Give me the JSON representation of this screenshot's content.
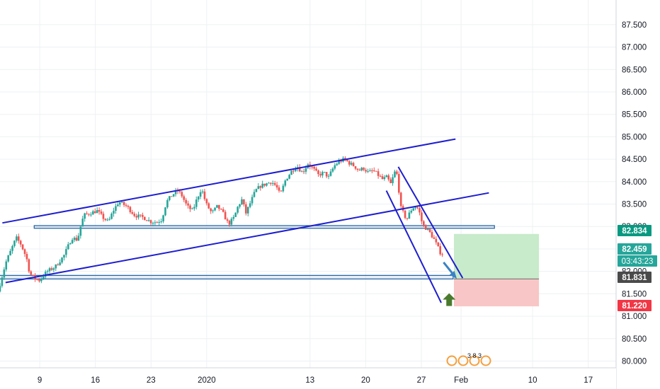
{
  "colors": {
    "up": "#26a69a",
    "down": "#ef5350",
    "trend": "#1e1ecf",
    "zone": "#1f5f9e",
    "profit_fill": "#c8ebcb",
    "loss_fill": "#f8c6c6",
    "grid": "#eef0f3",
    "arrow_down": "#3b82c4",
    "arrow_up": "#4a7a2e",
    "tag_target": "#089981",
    "tag_price": "#26a69a",
    "tag_entry": "#4a4a4a",
    "tag_stop": "#f23645"
  },
  "price_labels": {
    "target": "82.834",
    "price": "82.459",
    "countdown": "03:43:23",
    "entry": "81.831",
    "stop": "81.220"
  },
  "indicator_text": "3 8 3",
  "chart_data": {
    "type": "candlestick",
    "title": "",
    "y_range": [
      79.85,
      88.05
    ],
    "y_ticks": [
      "80.000",
      "80.500",
      "81.000",
      "81.500",
      "82.000",
      "82.500",
      "83.000",
      "83.500",
      "84.000",
      "84.500",
      "85.000",
      "85.500",
      "86.000",
      "86.500",
      "87.000",
      "87.500"
    ],
    "x_ticks": [
      {
        "label": "9",
        "x": 9
      },
      {
        "label": "16",
        "x": 16
      },
      {
        "label": "23",
        "x": 23
      },
      {
        "label": "2020",
        "x": 30
      },
      {
        "label": "13",
        "x": 43
      },
      {
        "label": "20",
        "x": 50
      },
      {
        "label": "27",
        "x": 57
      },
      {
        "label": "Feb",
        "x": 62
      },
      {
        "label": "10",
        "x": 71
      },
      {
        "label": "17",
        "x": 78
      }
    ],
    "x_range": [
      4,
      81.5
    ],
    "price_path": [
      [
        4.0,
        81.55
      ],
      [
        5.0,
        82.2
      ],
      [
        6.3,
        82.75
      ],
      [
        6.9,
        82.6
      ],
      [
        7.6,
        82.3
      ],
      [
        8.0,
        81.95
      ],
      [
        8.6,
        81.85
      ],
      [
        9.2,
        81.8
      ],
      [
        10.2,
        82.0
      ],
      [
        11.2,
        82.1
      ],
      [
        12.3,
        82.35
      ],
      [
        13.3,
        82.75
      ],
      [
        14.0,
        82.7
      ],
      [
        14.4,
        83.0
      ],
      [
        14.8,
        83.25
      ],
      [
        15.6,
        83.3
      ],
      [
        16.5,
        83.35
      ],
      [
        17.2,
        83.2
      ],
      [
        17.9,
        83.1
      ],
      [
        18.5,
        83.35
      ],
      [
        19.2,
        83.55
      ],
      [
        20.2,
        83.45
      ],
      [
        21.2,
        83.25
      ],
      [
        22.3,
        83.2
      ],
      [
        23.3,
        83.1
      ],
      [
        24.0,
        83.1
      ],
      [
        24.6,
        83.15
      ],
      [
        25.2,
        83.55
      ],
      [
        25.9,
        83.7
      ],
      [
        26.6,
        83.8
      ],
      [
        27.1,
        83.7
      ],
      [
        27.8,
        83.45
      ],
      [
        28.5,
        83.35
      ],
      [
        29.0,
        83.6
      ],
      [
        29.6,
        83.85
      ],
      [
        30.2,
        83.5
      ],
      [
        30.9,
        83.3
      ],
      [
        31.6,
        83.45
      ],
      [
        32.3,
        83.3
      ],
      [
        33.0,
        83.05
      ],
      [
        33.7,
        83.2
      ],
      [
        34.2,
        83.45
      ],
      [
        34.7,
        83.6
      ],
      [
        35.2,
        83.3
      ],
      [
        35.8,
        83.55
      ],
      [
        36.4,
        83.8
      ],
      [
        37.0,
        83.9
      ],
      [
        37.7,
        83.95
      ],
      [
        38.4,
        84.0
      ],
      [
        39.0,
        83.9
      ],
      [
        39.5,
        83.7
      ],
      [
        40.2,
        84.05
      ],
      [
        41.0,
        84.25
      ],
      [
        41.6,
        84.35
      ],
      [
        42.3,
        84.2
      ],
      [
        43.0,
        84.4
      ],
      [
        43.6,
        84.3
      ],
      [
        44.3,
        84.15
      ],
      [
        45.0,
        84.2
      ],
      [
        45.6,
        84.1
      ],
      [
        46.3,
        84.35
      ],
      [
        46.9,
        84.45
      ],
      [
        47.6,
        84.5
      ],
      [
        48.3,
        84.4
      ],
      [
        48.8,
        84.35
      ],
      [
        49.4,
        84.25
      ],
      [
        50.0,
        84.3
      ],
      [
        50.6,
        84.2
      ],
      [
        51.2,
        84.25
      ],
      [
        51.8,
        84.15
      ],
      [
        52.4,
        84.05
      ],
      [
        52.9,
        84.1
      ],
      [
        53.4,
        83.95
      ],
      [
        54.0,
        84.25
      ],
      [
        54.3,
        84.1
      ],
      [
        54.6,
        83.45
      ],
      [
        55.0,
        83.3
      ],
      [
        55.4,
        83.15
      ],
      [
        55.9,
        83.35
      ],
      [
        56.4,
        83.45
      ],
      [
        56.9,
        83.4
      ],
      [
        57.4,
        83.05
      ],
      [
        58.4,
        82.85
      ],
      [
        58.9,
        82.7
      ],
      [
        59.7,
        82.4
      ]
    ],
    "trend_lines": [
      {
        "name": "upper-channel",
        "points": [
          [
            4.3,
            83.08
          ],
          [
            61.3,
            84.95
          ]
        ]
      },
      {
        "name": "lower-channel",
        "points": [
          [
            4.7,
            81.75
          ],
          [
            65.5,
            83.75
          ]
        ]
      },
      {
        "name": "descending-upper",
        "points": [
          [
            54.1,
            84.33
          ],
          [
            62.2,
            81.85
          ]
        ]
      },
      {
        "name": "descending-lower",
        "points": [
          [
            52.6,
            83.8
          ],
          [
            59.5,
            81.3
          ]
        ]
      }
    ],
    "zones": [
      {
        "name": "resistance-zone",
        "x": [
          8.3,
          66.2
        ],
        "y": [
          82.96,
          83.02
        ]
      },
      {
        "name": "support-zone",
        "x": [
          0,
          61.0
        ],
        "y": [
          81.83,
          81.91
        ]
      }
    ],
    "position": {
      "x": [
        61.1,
        71.8
      ],
      "target": 82.834,
      "entry": 81.831,
      "stop": 81.22
    },
    "arrows": [
      {
        "name": "projection-arrow",
        "from": [
          59.8,
          82.2
        ],
        "to": [
          61.3,
          81.87
        ]
      },
      {
        "name": "long-entry-arrow",
        "at": [
          60.5,
          81.37
        ]
      }
    ]
  }
}
